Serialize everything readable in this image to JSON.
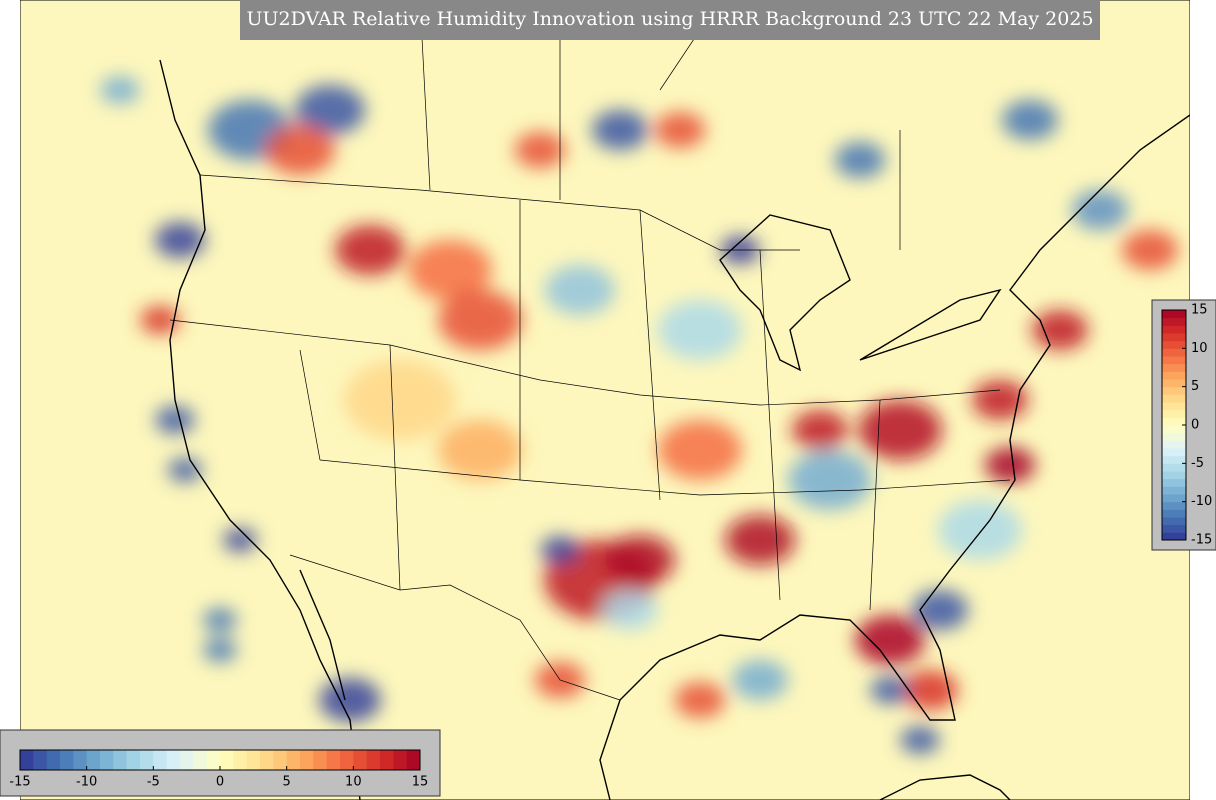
{
  "title": "UU2DVAR Relative Humidity Innovation using HRRR Background 23 UTC 22 May 2025",
  "colormap": [
    "#313695",
    "#4575b4",
    "#74add1",
    "#abd9e9",
    "#e0f3f8",
    "#ffffbf",
    "#fee090",
    "#fdae61",
    "#f46d43",
    "#d73027",
    "#a50026"
  ],
  "colorbars": [
    {
      "orientation": "horizontal",
      "lim": [
        -15,
        15
      ],
      "ticks": [
        -15,
        -10,
        -5,
        0,
        5,
        10,
        15
      ]
    },
    {
      "orientation": "vertical",
      "lim": [
        -15,
        15
      ],
      "ticks": [
        -15,
        -10,
        -5,
        0,
        5,
        10,
        15
      ]
    }
  ]
}
